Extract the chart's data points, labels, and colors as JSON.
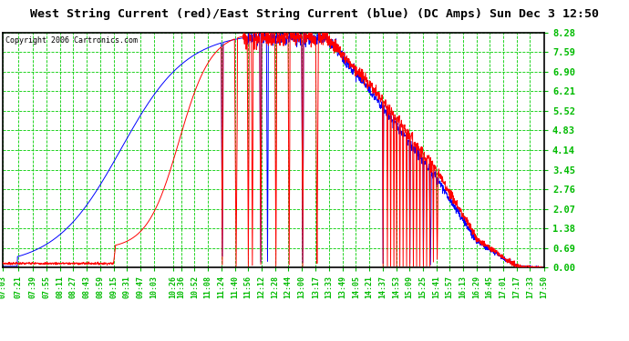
{
  "title": "West String Current (red)/East String Current (blue) (DC Amps) Sun Dec 3 12:50",
  "copyright": "Copyright 2006 Cartronics.com",
  "yticks": [
    0.0,
    0.69,
    1.38,
    2.07,
    2.76,
    3.45,
    4.14,
    4.83,
    5.52,
    6.21,
    6.9,
    7.59,
    8.28
  ],
  "ymax": 8.28,
  "ymin": 0.0,
  "xtick_labels": [
    "07:03",
    "07:21",
    "07:39",
    "07:55",
    "08:11",
    "08:27",
    "08:43",
    "08:59",
    "09:15",
    "09:31",
    "09:47",
    "10:03",
    "10:26",
    "10:36",
    "10:52",
    "11:08",
    "11:24",
    "11:40",
    "11:56",
    "12:12",
    "12:28",
    "12:44",
    "13:00",
    "13:17",
    "13:33",
    "13:49",
    "14:05",
    "14:21",
    "14:37",
    "14:53",
    "15:09",
    "15:25",
    "15:41",
    "15:57",
    "16:13",
    "16:29",
    "16:45",
    "17:01",
    "17:17",
    "17:33",
    "17:50"
  ],
  "bg_color": "#ffffff",
  "plot_bg_color": "#ffffff",
  "grid_color": "#00cc00",
  "line_red": "#ff0000",
  "line_blue": "#0000ff",
  "title_color": "#000000",
  "copyright_color": "#000000",
  "tick_label_color": "#00bb00"
}
